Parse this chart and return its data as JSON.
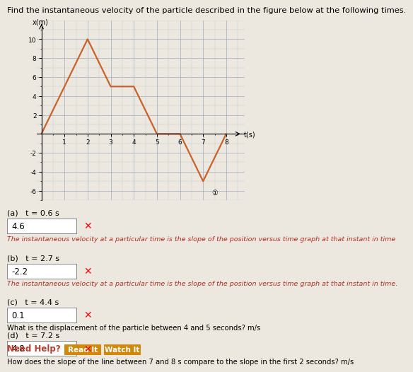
{
  "title": "Find the instantaneous velocity of the particle described in the figure below at the following times.",
  "x_data": [
    0,
    2,
    3,
    4,
    5,
    6,
    7,
    8
  ],
  "y_data": [
    0,
    10,
    5,
    5,
    0,
    0,
    -5,
    0
  ],
  "xlabel": "t(s)",
  "ylabel": "x(m)",
  "xlim": [
    -0.2,
    8.8
  ],
  "ylim": [
    -7,
    12
  ],
  "xticks": [
    1,
    2,
    3,
    4,
    5,
    6,
    7,
    8
  ],
  "yticks": [
    -6,
    -4,
    -2,
    2,
    4,
    6,
    8,
    10
  ],
  "line_color": "#c8622a",
  "line_width": 1.6,
  "parts": [
    {
      "label": "(a)   t = 0.6 s",
      "answer": "4.6"
    },
    {
      "label": "(b)   t = 2.7 s",
      "answer": "-2.2"
    },
    {
      "label": "(c)   t = 4.4 s",
      "answer": "0.1"
    },
    {
      "label": "(d)   t = 7.2 s",
      "answer": "4.8"
    }
  ],
  "hint_a": "The instantaneous velocity at a particular time is the slope of the position versus time graph at that instant in time",
  "hint_b": "The instantaneous velocity at a particular time is the slope of the position versus time graph at that instant in time.",
  "hint_c": "What is the displacement of the particle between 4 and 5 seconds? m/s",
  "hint_d": "How does the slope of the line between 7 and 8 s compare to the slope in the first 2 seconds? m/s",
  "bg_color": "#ece8df",
  "grid_color": "#9daabf",
  "figure_width": 7.0,
  "figure_height": 5.09
}
